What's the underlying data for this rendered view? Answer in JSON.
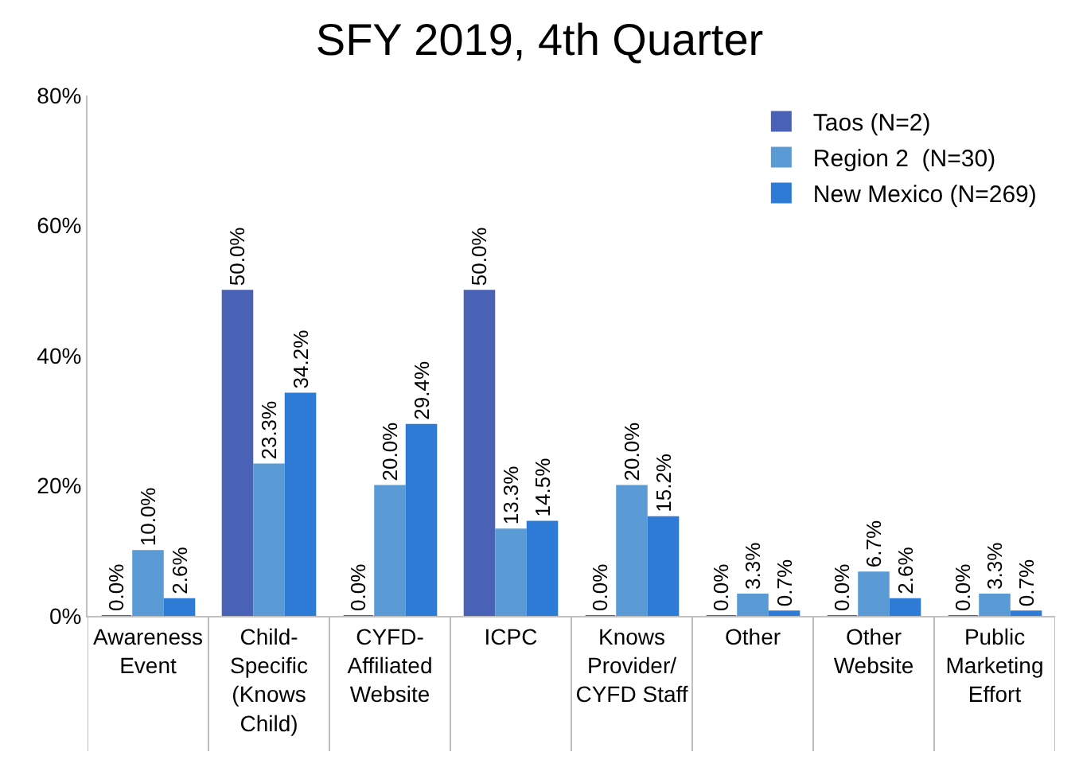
{
  "chart_data": {
    "type": "bar",
    "title": "SFY 2019, 4th Quarter",
    "categories": [
      "Awareness Event",
      "Child-Specific (Knows Child)",
      "CYFD-Affiliated Website",
      "ICPC",
      "Knows Provider/CYFD Staff",
      "Other",
      "Other Website",
      "Public Marketing Effort"
    ],
    "series": [
      {
        "name": "Taos (N=2)",
        "color": "#4a62b5",
        "values": [
          0.0,
          50.0,
          0.0,
          50.0,
          0.0,
          0.0,
          0.0,
          0.0
        ],
        "value_labels": [
          "0.0%",
          "50.0%",
          "0.0%",
          "50.0%",
          "0.0%",
          "0.0%",
          "0.0%",
          "0.0%"
        ]
      },
      {
        "name": "Region 2  (N=30)",
        "color": "#5b9bd5",
        "values": [
          10.0,
          23.3,
          20.0,
          13.3,
          20.0,
          3.3,
          6.7,
          3.3
        ],
        "value_labels": [
          "10.0%",
          "23.3%",
          "20.0%",
          "13.3%",
          "20.0%",
          "3.3%",
          "6.7%",
          "3.3%"
        ]
      },
      {
        "name": "New Mexico (N=269)",
        "color": "#2e7bd6",
        "values": [
          2.6,
          34.2,
          29.4,
          14.5,
          15.2,
          0.7,
          2.6,
          0.7
        ],
        "value_labels": [
          "2.6%",
          "34.2%",
          "29.4%",
          "14.5%",
          "15.2%",
          "0.7%",
          "2.6%",
          "0.7%"
        ]
      }
    ],
    "ylim": [
      0,
      80
    ],
    "yticks": [
      {
        "value": 0,
        "label": "0%"
      },
      {
        "value": 20,
        "label": "20%"
      },
      {
        "value": 40,
        "label": "40%"
      },
      {
        "value": 60,
        "label": "60%"
      },
      {
        "value": 80,
        "label": "80%"
      }
    ],
    "legend": "top right"
  }
}
